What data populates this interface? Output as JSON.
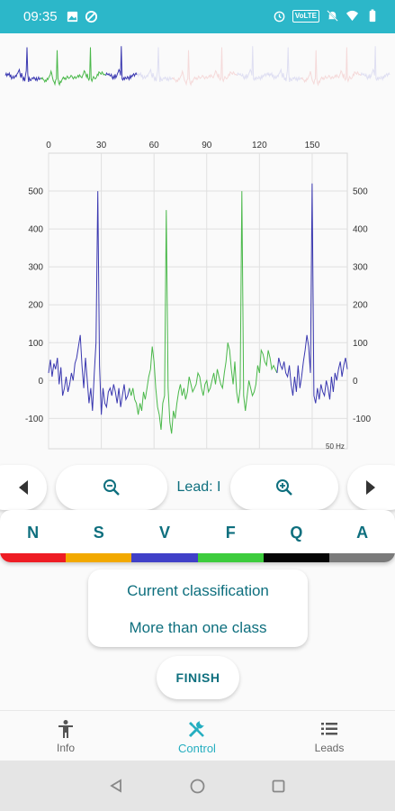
{
  "status_bar": {
    "time": "09:35",
    "left_icons": [
      "image-icon",
      "data-saver-icon"
    ],
    "right_icons": [
      "alarm-icon",
      "volte-icon",
      "mute-icon",
      "wifi-icon",
      "battery-icon"
    ],
    "volte_label": "VoLTE"
  },
  "chart_data": {
    "type": "line",
    "x_ticks": [
      "0",
      "30",
      "60",
      "90",
      "120",
      "150"
    ],
    "y_ticks_left": [
      "500",
      "400",
      "300",
      "200",
      "100",
      "0",
      "-100"
    ],
    "y_ticks_right": [
      "500",
      "400",
      "300",
      "200",
      "100",
      "0",
      "-100"
    ],
    "xlim": [
      0,
      170
    ],
    "ylim": [
      -180,
      600
    ],
    "grid": true,
    "unit_label": "50 Hz",
    "series": [
      {
        "color": "#3a38b0",
        "x": [
          0,
          1,
          2,
          3,
          4,
          5,
          6,
          7,
          8,
          9,
          10,
          11,
          12,
          13,
          14,
          15,
          16,
          17,
          18,
          19,
          20,
          21,
          22,
          23,
          24,
          25,
          26,
          27,
          28,
          29,
          30,
          31,
          32,
          33,
          34,
          35,
          36,
          37,
          38,
          39,
          40,
          41,
          42,
          43,
          44,
          45,
          46
        ],
        "y": [
          20,
          55,
          10,
          45,
          30,
          60,
          -10,
          35,
          -40,
          -20,
          10,
          -30,
          -10,
          20,
          0,
          45,
          60,
          90,
          120,
          40,
          -20,
          60,
          0,
          -60,
          -20,
          -80,
          20,
          100,
          500,
          40,
          -90,
          -20,
          -60,
          -70,
          -30,
          -20,
          -40,
          -10,
          -30,
          -60,
          -20,
          -70,
          -40,
          -10,
          -50,
          -40,
          -20
        ]
      },
      {
        "color": "#4ab84a",
        "x": [
          46,
          47,
          48,
          49,
          50,
          51,
          52,
          53,
          54,
          55,
          56,
          57,
          58,
          59,
          60,
          61,
          62,
          63,
          64,
          65,
          66,
          67,
          68,
          69,
          70,
          71,
          72,
          73,
          74,
          75,
          76,
          77,
          78,
          79,
          80,
          81,
          82,
          83,
          84,
          85,
          86,
          87,
          88,
          89,
          90,
          91,
          92,
          93,
          94,
          95,
          96,
          97,
          98,
          99,
          100,
          101,
          102,
          103,
          104,
          105,
          106,
          107,
          108,
          109,
          110,
          111,
          112,
          113,
          114,
          115,
          116,
          117,
          118,
          119,
          120,
          121,
          122,
          123,
          124,
          125,
          126,
          127,
          128,
          129,
          130
        ],
        "y": [
          -20,
          -40,
          -20,
          -50,
          -60,
          -90,
          -60,
          -80,
          -30,
          -50,
          -20,
          10,
          30,
          90,
          50,
          -20,
          -70,
          -90,
          -130,
          -60,
          -40,
          450,
          -20,
          -110,
          -140,
          -80,
          -100,
          -60,
          -30,
          -10,
          -40,
          -20,
          -50,
          -30,
          10,
          -10,
          -30,
          -20,
          -10,
          20,
          10,
          -20,
          -40,
          -10,
          0,
          -30,
          -20,
          0,
          20,
          -10,
          30,
          10,
          -10,
          -20,
          20,
          50,
          100,
          80,
          30,
          -10,
          50,
          -30,
          -60,
          -20,
          500,
          -40,
          -80,
          -40,
          0,
          -20,
          -40,
          -30,
          -10,
          40,
          20,
          80,
          70,
          50,
          40,
          80,
          60,
          30,
          40,
          30,
          20
        ]
      },
      {
        "color": "#3a38b0",
        "x": [
          130,
          131,
          132,
          133,
          134,
          135,
          136,
          137,
          138,
          139,
          140,
          141,
          142,
          143,
          144,
          145,
          146,
          147,
          148,
          149,
          150,
          151,
          152,
          153,
          154,
          155,
          156,
          157,
          158,
          159,
          160,
          161,
          162,
          163,
          164,
          165,
          166,
          167,
          168,
          169,
          170
        ],
        "y": [
          20,
          60,
          40,
          30,
          50,
          20,
          10,
          40,
          -10,
          -40,
          10,
          -30,
          40,
          -20,
          10,
          50,
          80,
          120,
          90,
          20,
          520,
          -40,
          -60,
          -20,
          -50,
          -10,
          -30,
          -40,
          0,
          -20,
          -50,
          10,
          -30,
          20,
          0,
          30,
          50,
          10,
          40,
          60,
          30
        ]
      }
    ]
  },
  "lead": {
    "label": "Lead: I"
  },
  "classes": [
    {
      "label": "N",
      "color": "#ee1c24"
    },
    {
      "label": "S",
      "color": "#f2a900"
    },
    {
      "label": "V",
      "color": "#4040c8"
    },
    {
      "label": "F",
      "color": "#3dcc3d"
    },
    {
      "label": "Q",
      "color": "#050505"
    },
    {
      "label": "A",
      "color": "#7a7a7a"
    }
  ],
  "classification": {
    "title": "Current classification",
    "value": "More than one class"
  },
  "finish_label": "FINISH",
  "bottom_nav": {
    "items": [
      {
        "label": "Info",
        "icon": "person-icon",
        "active": false
      },
      {
        "label": "Control",
        "icon": "tools-icon",
        "active": true
      },
      {
        "label": "Leads",
        "icon": "list-icon",
        "active": false
      }
    ]
  },
  "colors": {
    "accent": "#2cb7c9",
    "text": "#0e6f7e"
  }
}
